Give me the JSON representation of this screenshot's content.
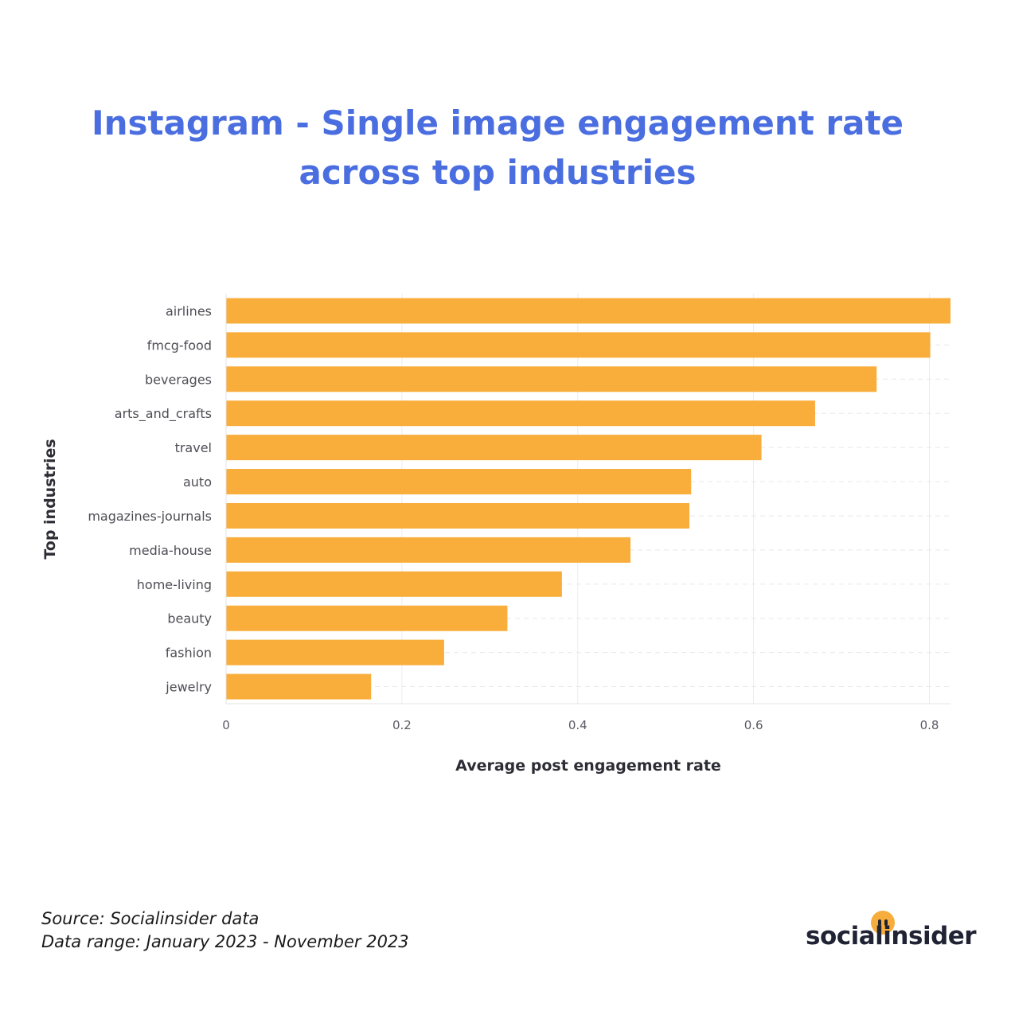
{
  "title_line1": "Instagram - Single image engagement rate",
  "title_line2": "across top industries",
  "chart_data": {
    "type": "bar",
    "orientation": "horizontal",
    "categories": [
      "airlines",
      "fmcg-food",
      "beverages",
      "arts_and_crafts",
      "travel",
      "auto",
      "magazines-journals",
      "media-house",
      "home-living",
      "beauty",
      "fashion",
      "jewelry"
    ],
    "values": [
      0.824,
      0.801,
      0.74,
      0.67,
      0.609,
      0.529,
      0.527,
      0.46,
      0.382,
      0.32,
      0.248,
      0.165
    ],
    "xlabel": "Average post engagement rate",
    "ylabel": "Top industries",
    "xlim": [
      0,
      0.824
    ],
    "xticks": [
      0,
      0.2,
      0.4,
      0.6,
      0.8
    ],
    "xtick_labels": [
      "0",
      "0.2",
      "0.4",
      "0.6",
      "0.8"
    ],
    "bar_color": "#f9ad3b",
    "grid": true
  },
  "footer": {
    "source": "Source: Socialinsider data",
    "range": "Data range: January 2023 - November 2023"
  },
  "brand": {
    "name": "socialinsider",
    "accent_color": "#f7ad3c"
  }
}
